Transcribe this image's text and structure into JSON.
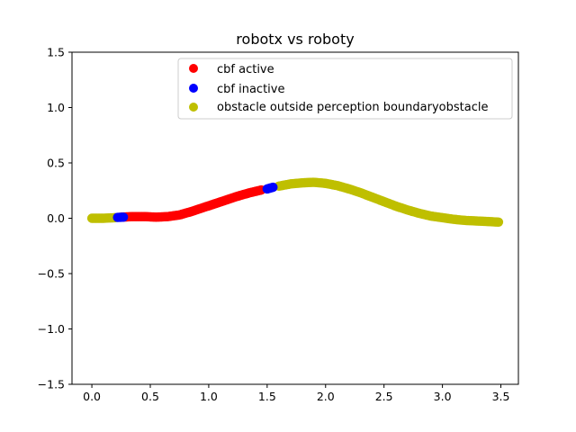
{
  "chart_data": {
    "type": "scatter",
    "title": "robotx vs roboty",
    "xlabel": "",
    "ylabel": "",
    "xlim": [
      -0.17,
      3.65
    ],
    "ylim": [
      -1.5,
      1.5
    ],
    "xticks": [
      0.0,
      0.5,
      1.0,
      1.5,
      2.0,
      2.5,
      3.0,
      3.5
    ],
    "xtick_labels": [
      "0.0",
      "0.5",
      "1.0",
      "1.5",
      "2.0",
      "2.5",
      "3.0",
      "3.5"
    ],
    "yticks": [
      -1.5,
      -1.0,
      -0.5,
      0.0,
      0.5,
      1.0,
      1.5
    ],
    "ytick_labels": [
      "−1.5",
      "−1.0",
      "−0.5",
      "0.0",
      "0.5",
      "1.0",
      "1.5"
    ],
    "grid": false,
    "legend_position": "top-right",
    "series": [
      {
        "name": "cbf active",
        "color": "#ff0000",
        "x": [
          0.25,
          0.35,
          0.45,
          0.55,
          0.65,
          0.75,
          0.85,
          0.95,
          1.05,
          1.15,
          1.25,
          1.35,
          1.45
        ],
        "y": [
          0.01,
          0.015,
          0.015,
          0.01,
          0.015,
          0.03,
          0.06,
          0.095,
          0.13,
          0.165,
          0.2,
          0.23,
          0.255
        ]
      },
      {
        "name": "cbf inactive",
        "color": "#0000ff",
        "x": [
          0.22,
          0.27,
          1.5,
          1.55
        ],
        "y": [
          0.008,
          0.01,
          0.265,
          0.28
        ]
      },
      {
        "name": "obstacle outside perception boundaryobstacle",
        "color": "#bfbf00",
        "x": [
          0.0,
          0.1,
          0.2,
          1.6,
          1.7,
          1.8,
          1.9,
          2.0,
          2.1,
          2.2,
          2.3,
          2.4,
          2.5,
          2.6,
          2.7,
          2.8,
          2.9,
          3.0,
          3.1,
          3.2,
          3.3,
          3.4,
          3.48
        ],
        "y": [
          0.0,
          0.0,
          0.005,
          0.29,
          0.31,
          0.32,
          0.325,
          0.315,
          0.295,
          0.265,
          0.23,
          0.19,
          0.15,
          0.11,
          0.075,
          0.045,
          0.02,
          0.005,
          -0.01,
          -0.02,
          -0.025,
          -0.03,
          -0.035
        ]
      }
    ]
  }
}
